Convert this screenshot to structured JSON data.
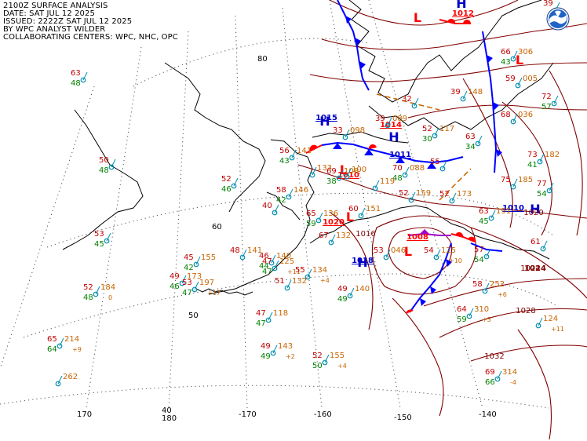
{
  "header": {
    "line1": "2100Z SURFACE ANALYSIS",
    "line2": "DATE: SAT JUL 12 2025",
    "line3": "ISSUED: 2222Z SAT JUL 12 2025",
    "line4": "BY WPC ANALYST WILDER",
    "line5": "COLLABORATING CENTERS: WPC, NHC, OPC"
  },
  "colors": {
    "station_temp": "#c00000",
    "station_dewpoint": "#008000",
    "station_pressure": "#c86400",
    "station_circle": "#008eb0",
    "isobar": "#800000",
    "cold_front": "#0000ff",
    "warm_front": "#ff0000",
    "low_center": "#ff0000",
    "high_center": "#0000c8",
    "trough": "#c86400",
    "coast": "#000000",
    "graticule": "#555555"
  },
  "logo_icon": "noaa-logo-icon",
  "lon_labels": [
    "170",
    "180",
    "-170",
    "-160",
    "-150",
    "-140"
  ],
  "lat_labels": [
    "80",
    "60",
    "50",
    "40"
  ],
  "lows": [
    "L",
    "L",
    "L",
    "L",
    "L"
  ],
  "highs": [
    "H",
    "H",
    "H",
    "H",
    "H"
  ],
  "center_values": [
    "1015",
    "1014",
    "1010",
    "1008",
    "1018",
    "1010",
    "1011",
    "1012",
    "1024",
    "1020"
  ],
  "isobar_labels": [
    "1028",
    "1032",
    "1024",
    "1016",
    "1020"
  ],
  "stations": [
    {
      "t": "63",
      "d": "48",
      "p": ""
    },
    {
      "t": "50",
      "d": "48",
      "p": ""
    },
    {
      "t": "52",
      "d": "46",
      "p": ""
    },
    {
      "t": "53",
      "d": "45",
      "p": ""
    },
    {
      "t": "52",
      "d": "48",
      "p": "184",
      "tend": "0"
    },
    {
      "t": "65",
      "d": "64",
      "p": "214",
      "tend": "+9"
    },
    {
      "t": "",
      "d": "",
      "p": "262"
    },
    {
      "t": "48",
      "d": "",
      "p": "141"
    },
    {
      "t": "45",
      "d": "42",
      "p": "155"
    },
    {
      "t": "49",
      "d": "46",
      "p": "173"
    },
    {
      "t": "53",
      "d": "47",
      "p": "197",
      "tend": "+17"
    },
    {
      "t": "46",
      "d": "44",
      "p": "140"
    },
    {
      "t": "47",
      "d": "47",
      "p": "125",
      "tend": "+11"
    },
    {
      "t": "51",
      "d": "",
      "p": "132"
    },
    {
      "t": "55",
      "d": "",
      "p": "134",
      "tend": "+4"
    },
    {
      "t": "47",
      "d": "47",
      "p": "118"
    },
    {
      "t": "49",
      "d": "49",
      "p": "143",
      "tend": "+2"
    },
    {
      "t": "52",
      "d": "50",
      "p": "155",
      "tend": "+4"
    },
    {
      "t": "49",
      "d": "49",
      "p": "140"
    },
    {
      "t": "56",
      "d": "43",
      "p": "141"
    },
    {
      "t": "58",
      "d": "42",
      "p": "146"
    },
    {
      "t": "40",
      "d": "",
      "p": ""
    },
    {
      "t": "65",
      "d": "59",
      "p": "136"
    },
    {
      "t": "67",
      "d": "",
      "p": "132"
    },
    {
      "t": "60",
      "d": "",
      "p": "151"
    },
    {
      "t": "69",
      "d": "38",
      "p": "108"
    },
    {
      "t": "",
      "d": "",
      "p": "133"
    },
    {
      "t": "53",
      "d": "",
      "p": "046"
    },
    {
      "t": "70",
      "d": "48",
      "p": "088"
    },
    {
      "t": "",
      "d": "",
      "p": "119"
    },
    {
      "t": "52",
      "d": "",
      "p": "159"
    },
    {
      "t": "52",
      "d": "",
      "p": "173"
    },
    {
      "t": "55",
      "d": "",
      "p": ""
    },
    {
      "t": "54",
      "d": "",
      "p": "125",
      "tend": "+10"
    },
    {
      "t": "63",
      "d": "45",
      "p": "191"
    },
    {
      "t": "57",
      "d": "54",
      "p": ""
    },
    {
      "t": "58",
      "d": "",
      "p": "252",
      "tend": "+6"
    },
    {
      "t": "64",
      "d": "59",
      "p": "310",
      "tend": "+5"
    },
    {
      "t": "69",
      "d": "66",
      "p": "314",
      "tend": "-4"
    },
    {
      "t": "",
      "d": "",
      "p": "124",
      "tend": "+11"
    },
    {
      "t": "75",
      "d": "",
      "p": "185"
    },
    {
      "t": "73",
      "d": "41",
      "p": "182"
    },
    {
      "t": "77",
      "d": "54",
      "p": ""
    },
    {
      "t": "68",
      "d": "",
      "p": "036"
    },
    {
      "t": "59",
      "d": "",
      "p": "005"
    },
    {
      "t": "72",
      "d": "57",
      "p": ""
    },
    {
      "t": "66",
      "d": "43",
      "p": "306"
    },
    {
      "t": "39",
      "d": "",
      "p": "148"
    },
    {
      "t": "32",
      "d": "",
      "p": ""
    },
    {
      "t": "39",
      "d": "",
      "p": "089"
    },
    {
      "t": "52",
      "d": "30",
      "p": "117"
    },
    {
      "t": "63",
      "d": "34",
      "p": ""
    },
    {
      "t": "33",
      "d": "",
      "p": "098"
    },
    {
      "t": "",
      "d": "",
      "p": "100"
    },
    {
      "t": "61",
      "d": "",
      "p": ""
    },
    {
      "t": "39",
      "d": "",
      "p": ""
    }
  ]
}
